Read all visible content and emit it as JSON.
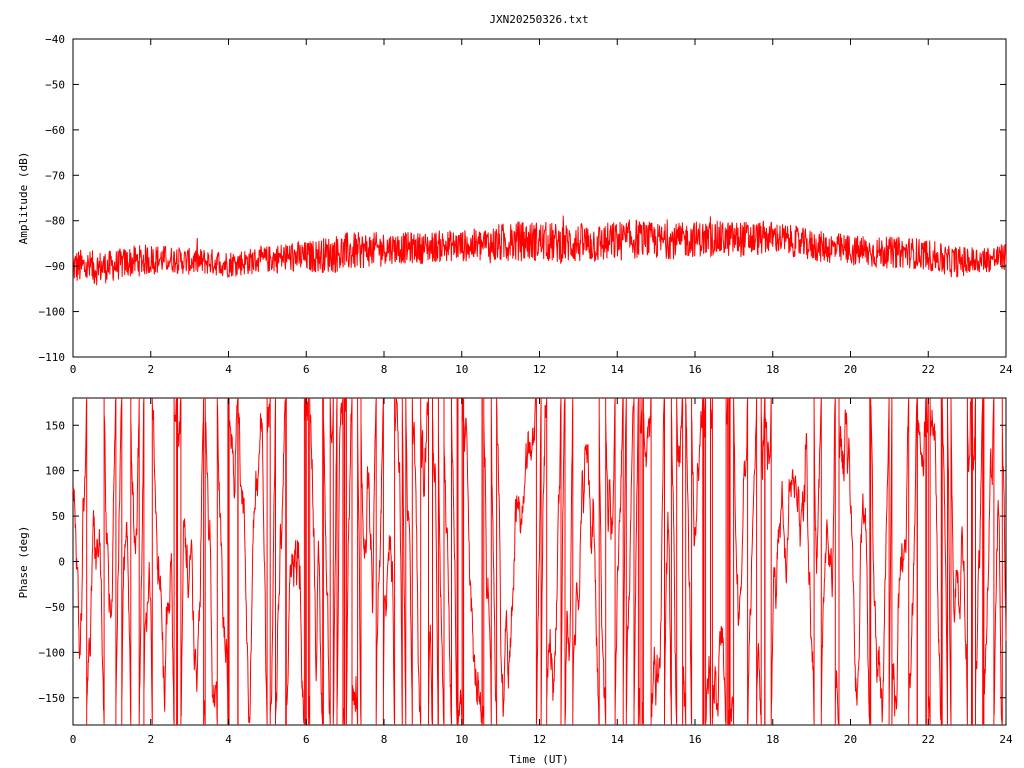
{
  "title": "JXN20250326.txt",
  "colors": {
    "series": "#ff0000",
    "axis": "#000000",
    "background": "#ffffff"
  },
  "chart_data": [
    {
      "type": "line",
      "title": "JXN20250326.txt",
      "xlabel": "",
      "ylabel": "Amplitude (dB)",
      "xlim": [
        0,
        24
      ],
      "ylim": [
        -110,
        -40
      ],
      "x_ticks": [
        "0",
        "2",
        "4",
        "6",
        "8",
        "10",
        "12",
        "14",
        "16",
        "18",
        "20",
        "22",
        "24"
      ],
      "y_ticks": [
        "-40",
        "-50",
        "-60",
        "-70",
        "-80",
        "-90",
        "-100",
        "-110"
      ],
      "grid": false,
      "series": [
        {
          "x": [
            0,
            0.5,
            1,
            1.5,
            2,
            2.5,
            3,
            3.5,
            4,
            4.5,
            5,
            5.5,
            6,
            6.5,
            7,
            7.5,
            8,
            8.5,
            9,
            9.5,
            10,
            10.5,
            11,
            11.5,
            12,
            12.5,
            13,
            13.5,
            14,
            14.5,
            15,
            15.5,
            16,
            16.5,
            17,
            17.5,
            18,
            18.5,
            19,
            19.5,
            20,
            20.5,
            21,
            21.5,
            22,
            22.5,
            23,
            23.5,
            24
          ],
          "center": [
            -90,
            -90.5,
            -90,
            -89,
            -88.5,
            -88.5,
            -89,
            -89,
            -89.5,
            -89,
            -88.5,
            -88,
            -88,
            -87.5,
            -87,
            -86.5,
            -86,
            -86,
            -86,
            -85.5,
            -85.5,
            -85.5,
            -85,
            -84.5,
            -84.5,
            -85,
            -85,
            -85,
            -84.5,
            -84,
            -84.5,
            -84.5,
            -84,
            -84,
            -84,
            -84,
            -83.5,
            -84.5,
            -85.5,
            -86,
            -86.5,
            -87,
            -87,
            -87,
            -87.5,
            -89,
            -89,
            -88.5,
            -88
          ],
          "spread": [
            4,
            4,
            3.5,
            3.5,
            3.5,
            3,
            3,
            3,
            3,
            3,
            3,
            3.5,
            3.5,
            4,
            4.5,
            4,
            3.5,
            3.5,
            3.5,
            3.5,
            3.5,
            4,
            4.5,
            4.5,
            4.5,
            4.5,
            4.5,
            4.5,
            4.5,
            4.5,
            4,
            4,
            4,
            4,
            4,
            4,
            3.5,
            3.5,
            3.5,
            3.5,
            3.5,
            3.5,
            3.5,
            3.5,
            3.5,
            3.5,
            3.5,
            3,
            3
          ]
        }
      ]
    },
    {
      "type": "line",
      "xlabel": "Time (UT)",
      "ylabel": "Phase (deg)",
      "xlim": [
        0,
        24
      ],
      "ylim": [
        -180,
        180
      ],
      "x_ticks": [
        "0",
        "2",
        "4",
        "6",
        "8",
        "10",
        "12",
        "14",
        "16",
        "18",
        "20",
        "22",
        "24"
      ],
      "y_ticks": [
        "150",
        "100",
        "50",
        "0",
        "-50",
        "-100",
        "-150"
      ],
      "grid": false,
      "series": [
        {
          "note_wrap": "phase wraps at ±180",
          "x_range": [
            0,
            24
          ]
        }
      ]
    }
  ]
}
